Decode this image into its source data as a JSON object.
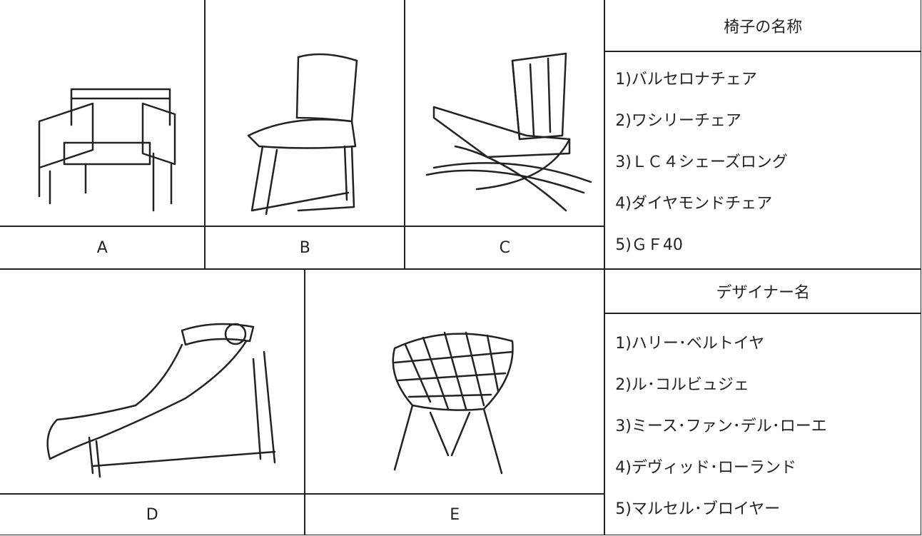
{
  "chair_labels": {
    "top": [
      "A",
      "B",
      "C"
    ],
    "bottom": [
      "D",
      "E"
    ]
  },
  "chair_names": {
    "header": "椅子の名称",
    "items": [
      "1)バルセロナチェア",
      "2)ワシリーチェア",
      "3)ＬＣ４シェーズロング",
      "4)ダイヤモンドチェア",
      "5)ＧＦ40"
    ]
  },
  "designers": {
    "header": "デザイナー名",
    "items": [
      "1)ハリー･ベルトイヤ",
      "2)ル･コルビュジェ",
      "3)ミース･ファン･デル･ローエ",
      "4)デヴィッド･ローランド",
      "5)マルセル･ブロイヤー"
    ]
  }
}
